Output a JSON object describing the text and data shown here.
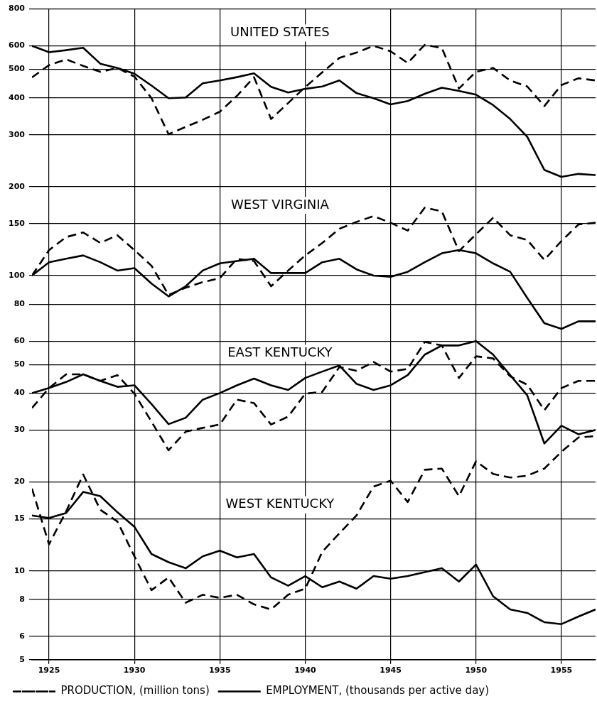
{
  "chart_data": {
    "type": "line",
    "log": true,
    "grid": true,
    "legend": "bottom",
    "marker": "none",
    "x": [
      1924,
      1925,
      1926,
      1927,
      1928,
      1929,
      1930,
      1931,
      1932,
      1933,
      1934,
      1935,
      1936,
      1937,
      1938,
      1939,
      1940,
      1941,
      1942,
      1943,
      1944,
      1945,
      1946,
      1947,
      1948,
      1949,
      1950,
      1951,
      1952,
      1953,
      1954,
      1955,
      1956,
      1957
    ],
    "xlim": [
      1924,
      1957
    ],
    "xticks": [
      1925,
      1930,
      1935,
      1940,
      1945,
      1950,
      1955
    ],
    "ylim": [
      5,
      800
    ],
    "yticks": [
      5,
      6,
      8,
      10,
      15,
      20,
      30,
      40,
      50,
      60,
      80,
      100,
      150,
      200,
      300,
      400,
      500,
      600,
      800
    ],
    "series": [
      {
        "name": "PRODUCTION, (million tons)",
        "color": "#000000",
        "line_style": "dashed",
        "values": [
          469,
          516,
          540,
          513,
          490,
          505,
          472,
          399,
          301,
          319,
          337,
          359,
          406,
          470,
          339,
          384,
          435,
          488,
          546,
          569,
          600,
          575,
          525,
          605,
          590,
          430,
          490,
          505,
          458,
          437,
          375,
          442,
          466,
          458
        ]
      },
      {
        "name": "EMPLOYMENT, (thousands per active day)",
        "color": "#000000",
        "line_style": "solid",
        "values": [
          600,
          571,
          580,
          591,
          522,
          505,
          483,
          440,
          399,
          401,
          448,
          458,
          470,
          484,
          436,
          417,
          429,
          437,
          458,
          415,
          399,
          380,
          390,
          413,
          433,
          422,
          410,
          378,
          339,
          295,
          228,
          216,
          221,
          219
        ]
      },
      {
        "color": "#000000",
        "line_style": "dashed",
        "values": [
          100,
          122,
          135,
          140,
          129,
          137,
          122,
          108,
          86,
          91,
          95,
          98,
          114,
          112,
          92,
          104,
          117,
          129,
          144,
          152,
          159,
          151,
          142,
          170,
          165,
          121,
          138,
          157,
          137,
          132,
          113,
          131,
          149,
          151
        ]
      },
      {
        "color": "#000000",
        "line_style": "solid",
        "values": [
          100,
          111,
          114,
          117,
          111,
          104,
          106,
          94,
          85,
          92,
          104,
          110,
          112,
          114,
          102,
          102,
          102,
          111,
          114,
          105,
          100,
          99,
          103,
          111,
          119,
          122,
          119,
          110,
          103,
          84,
          69,
          66,
          70,
          70
        ]
      },
      {
        "color": "#000000",
        "line_style": "dashed",
        "values": [
          35.6,
          41.6,
          46.3,
          46.3,
          44,
          46,
          39.8,
          32,
          25.6,
          29.6,
          30.5,
          31.3,
          38,
          37,
          31.3,
          33.3,
          39.8,
          40.4,
          49,
          47.6,
          51,
          47.3,
          48.3,
          59.6,
          58,
          45,
          53.3,
          52.4,
          45.6,
          42.7,
          35,
          41.6,
          44,
          44
        ]
      },
      {
        "color": "#000000",
        "line_style": "solid",
        "values": [
          40,
          41.6,
          43.6,
          46.3,
          44,
          42,
          42.5,
          36.7,
          31.4,
          33,
          38,
          40,
          42.5,
          44.8,
          42.5,
          41,
          45,
          47.3,
          49.6,
          43,
          41,
          42.5,
          46,
          54,
          58,
          58,
          60,
          54,
          46,
          39.3,
          27,
          31,
          29,
          30
        ]
      },
      {
        "color": "#000000",
        "line_style": "dashed",
        "values": [
          19,
          12.3,
          15.9,
          21.2,
          16.1,
          14.7,
          11.2,
          8.6,
          9.5,
          7.8,
          8.3,
          8.1,
          8.3,
          7.7,
          7.4,
          8.3,
          8.7,
          11.6,
          13.4,
          15.4,
          19.3,
          20.2,
          17.1,
          22,
          22.2,
          17.9,
          23.5,
          21.3,
          20.7,
          21,
          22.2,
          25.3,
          28.3,
          28.6
        ]
      },
      {
        "color": "#000000",
        "line_style": "solid",
        "values": [
          15.4,
          15.1,
          15.7,
          18.5,
          17.9,
          15.8,
          14.1,
          11.4,
          10.7,
          10.2,
          11.2,
          11.7,
          11.1,
          11.4,
          9.5,
          8.9,
          9.6,
          8.8,
          9.2,
          8.7,
          9.6,
          9.4,
          9.6,
          9.9,
          10.2,
          9.2,
          10.5,
          8.2,
          7.4,
          7.2,
          6.7,
          6.6,
          7,
          7.4
        ]
      }
    ],
    "annotations": [
      "UNITED STATES",
      "WEST VIRGINIA",
      "EAST KENTUCKY",
      "WEST KENTUCKY"
    ]
  }
}
